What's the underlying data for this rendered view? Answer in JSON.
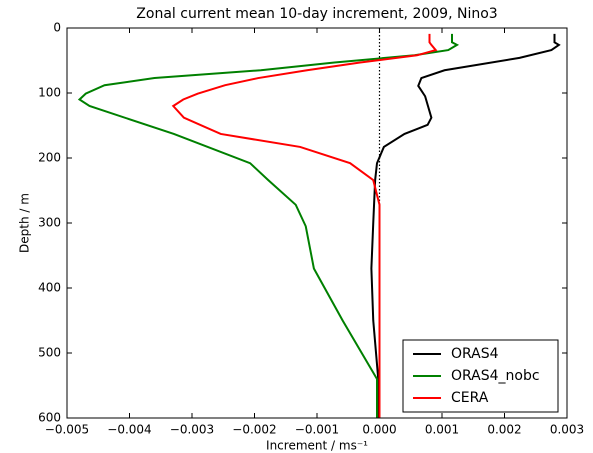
{
  "chart_data": {
    "type": "line",
    "title": "Zonal current mean 10-day increment, 2009, Nino3",
    "xlabel": "Increment / ms⁻¹",
    "ylabel": "Depth / m",
    "xlim": [
      -0.005,
      0.003
    ],
    "xticks": [
      {
        "value": -0.005,
        "label": "−0.005"
      },
      {
        "value": -0.004,
        "label": "−0.004"
      },
      {
        "value": -0.003,
        "label": "−0.003"
      },
      {
        "value": -0.002,
        "label": "−0.002"
      },
      {
        "value": -0.001,
        "label": "−0.001"
      },
      {
        "value": 0,
        "label": "0.000"
      },
      0.001,
      0.002,
      0.003
    ],
    "ylim": [
      600,
      0
    ],
    "yticks": [
      0,
      100,
      200,
      300,
      400,
      500,
      600
    ],
    "vline": 0,
    "legend": "lower right",
    "series": [
      {
        "name": "ORAS4",
        "color": "#000000",
        "depth": [
          9,
          22,
          26,
          34,
          46,
          65,
          77,
          89,
          105,
          138,
          149,
          163,
          183,
          208,
          234,
          300,
          370,
          450,
          540,
          600
        ],
        "values": [
          0.0028,
          0.0028,
          0.00287,
          0.00275,
          0.00224,
          0.00104,
          0.00067,
          0.00062,
          0.00073,
          0.00083,
          0.00077,
          0.0004,
          7e-05,
          -4e-05,
          -7e-05,
          -0.0001,
          -0.00013,
          -0.0001,
          -2e-05,
          -1e-05
        ]
      },
      {
        "name": "ORAS4_nobc",
        "color": "#008000",
        "depth": [
          9,
          22,
          26,
          34,
          42,
          53,
          65,
          77,
          88,
          101,
          110,
          120,
          163,
          208,
          234,
          272,
          305,
          370,
          450,
          540,
          600
        ],
        "values": [
          0.00116,
          0.00116,
          0.00124,
          0.0011,
          0.00056,
          -0.00072,
          -0.0019,
          -0.0036,
          -0.0044,
          -0.0047,
          -0.0048,
          -0.00464,
          -0.00329,
          -0.00207,
          -0.00178,
          -0.00134,
          -0.00118,
          -0.00105,
          -0.00059,
          -4e-05,
          -4e-05
        ]
      },
      {
        "name": "CERA",
        "color": "#ff0000",
        "depth": [
          9,
          22,
          26,
          34,
          42,
          53,
          65,
          77,
          88,
          101,
          110,
          120,
          138,
          163,
          183,
          208,
          234,
          272,
          600
        ],
        "values": [
          0.0008,
          0.0008,
          0.00083,
          0.0009,
          0.0006,
          -0.00031,
          -0.00116,
          -0.00194,
          -0.00247,
          -0.00291,
          -0.00314,
          -0.0033,
          -0.00313,
          -0.00254,
          -0.00127,
          -0.00047,
          -0.0001,
          0,
          0
        ]
      }
    ]
  }
}
